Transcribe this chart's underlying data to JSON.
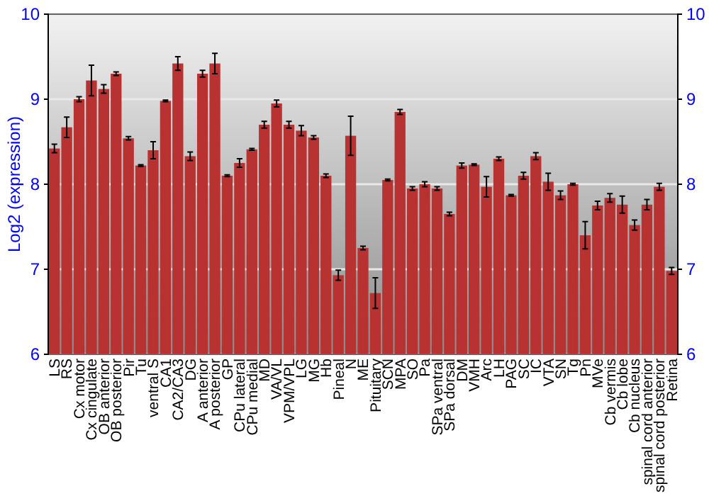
{
  "chart_data": {
    "type": "bar",
    "ylabel": "Log2 (expression)",
    "categories": [
      "LS",
      "RS",
      "Cx motor",
      "Cx cingulate",
      "OB anterior",
      "OB posterior",
      "Pir",
      "Tu",
      "ventral S",
      "CA1",
      "CA2/CA3",
      "DG",
      "A anterior",
      "A posterior",
      "GP",
      "CPu lateral",
      "CPu medial",
      "MD",
      "VA/VL",
      "VPM/VPL",
      "LG",
      "MG",
      "Hb",
      "Pineal",
      "N",
      "ME",
      "Pituitary",
      "SCN",
      "MPA",
      "SO",
      "Pa",
      "SPa ventral",
      "SPa dorsal",
      "DM",
      "VMH",
      "Arc",
      "LH",
      "PAG",
      "SC",
      "IC",
      "VTA",
      "SN",
      "Tg",
      "Pn",
      "MVe",
      "Cb vermis",
      "Cb lobe",
      "Cb nucleus",
      "spinal cord anterior",
      "spinal cord posterior",
      "Retina"
    ],
    "values": [
      8.42,
      8.67,
      9.0,
      9.22,
      9.12,
      9.3,
      8.54,
      8.22,
      8.4,
      8.98,
      9.42,
      8.33,
      9.3,
      9.42,
      8.1,
      8.25,
      8.41,
      8.7,
      8.95,
      8.7,
      8.63,
      8.55,
      8.1,
      6.93,
      8.57,
      7.25,
      6.72,
      8.05,
      8.85,
      7.95,
      8.0,
      7.95,
      7.65,
      8.22,
      8.23,
      7.97,
      8.3,
      7.87,
      8.1,
      8.33,
      8.03,
      7.87,
      8.0,
      7.4,
      7.75,
      7.84,
      7.76,
      7.52,
      7.76,
      7.97,
      6.98
    ],
    "errors": [
      0.05,
      0.12,
      0.03,
      0.18,
      0.05,
      0.02,
      0.02,
      0.01,
      0.1,
      0.01,
      0.08,
      0.05,
      0.04,
      0.12,
      0.01,
      0.05,
      0.01,
      0.04,
      0.04,
      0.04,
      0.06,
      0.02,
      0.02,
      0.06,
      0.23,
      0.02,
      0.18,
      0.01,
      0.03,
      0.02,
      0.03,
      0.02,
      0.02,
      0.03,
      0.01,
      0.12,
      0.02,
      0.01,
      0.04,
      0.04,
      0.1,
      0.05,
      0.01,
      0.16,
      0.05,
      0.05,
      0.1,
      0.06,
      0.06,
      0.04,
      0.04
    ],
    "color": "#b83232",
    "ylim": [
      6,
      10
    ],
    "yticks": [
      6,
      7,
      8,
      9,
      10
    ],
    "y2lim": [
      6,
      10
    ],
    "y2ticks": [
      6,
      7,
      8,
      9,
      10
    ],
    "grid": "y"
  }
}
